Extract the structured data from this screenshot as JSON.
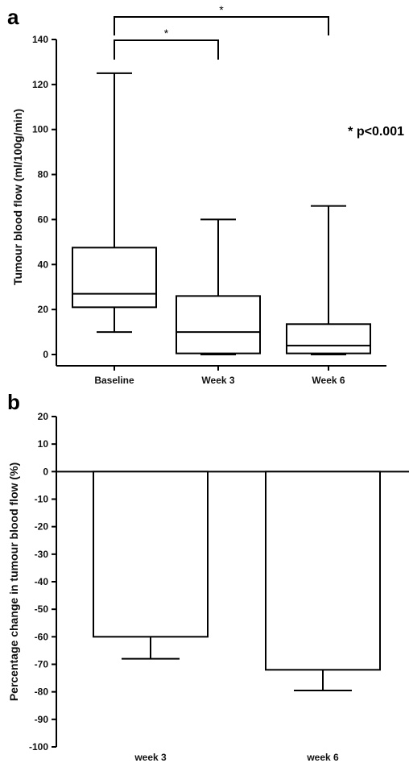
{
  "chart_data": [
    {
      "type": "box",
      "panel_label": "a",
      "ylabel": "Tumour blood flow (ml/100g/min)",
      "ylim": [
        0,
        140
      ],
      "yticks": [
        "0",
        "20",
        "40",
        "60",
        "80",
        "100",
        "120",
        "140"
      ],
      "categories": [
        "Baseline",
        "Week 3",
        "Week 6"
      ],
      "boxes": [
        {
          "category": "Baseline",
          "min": 10,
          "q1": 21,
          "median": 27,
          "q3": 47.5,
          "max": 125
        },
        {
          "category": "Week 3",
          "min": 0,
          "q1": 0.5,
          "median": 10,
          "q3": 26,
          "max": 60
        },
        {
          "category": "Week 6",
          "min": 0,
          "q1": 0.5,
          "median": 4,
          "q3": 13.5,
          "max": 66
        }
      ],
      "significance": [
        {
          "from": "Baseline",
          "to": "Week 3",
          "label": "*"
        },
        {
          "from": "Baseline",
          "to": "Week 6",
          "label": "*"
        }
      ],
      "annotation": "* p<0.001"
    },
    {
      "type": "bar",
      "panel_label": "b",
      "ylabel": "Percentage change in tumour blood flow (%)",
      "ylim": [
        -100,
        20
      ],
      "yticks": [
        "20",
        "10",
        "0",
        "-10",
        "-20",
        "-30",
        "-40",
        "-50",
        "-60",
        "-70",
        "-80",
        "-90",
        "-100"
      ],
      "categories": [
        "week 3",
        "week 6"
      ],
      "values": [
        -60,
        -72
      ],
      "errors": [
        8,
        7.5
      ]
    }
  ]
}
